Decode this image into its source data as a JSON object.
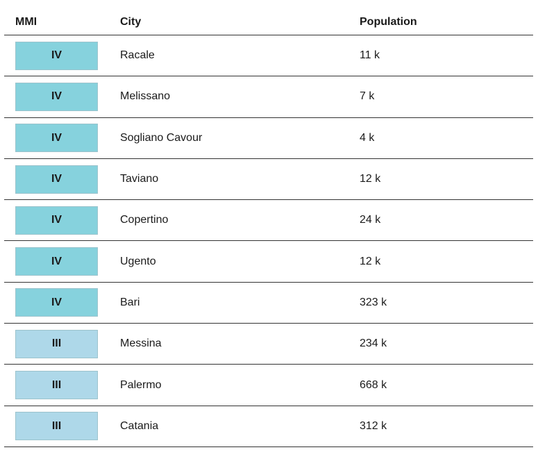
{
  "table": {
    "headers": [
      "MMI",
      "City",
      "Population"
    ],
    "colors": {
      "IV": "#86d2dd",
      "III": "#aed8e9"
    },
    "rows": [
      [
        "IV",
        "Racale",
        "11 k"
      ],
      [
        "IV",
        "Melissano",
        "7 k"
      ],
      [
        "IV",
        "Sogliano Cavour",
        "4 k"
      ],
      [
        "IV",
        "Taviano",
        "12 k"
      ],
      [
        "IV",
        "Copertino",
        "24 k"
      ],
      [
        "IV",
        "Ugento",
        "12 k"
      ],
      [
        "IV",
        "Bari",
        "323 k"
      ],
      [
        "III",
        "Messina",
        "234 k"
      ],
      [
        "III",
        "Palermo",
        "668 k"
      ],
      [
        "III",
        "Catania",
        "312 k"
      ]
    ]
  }
}
